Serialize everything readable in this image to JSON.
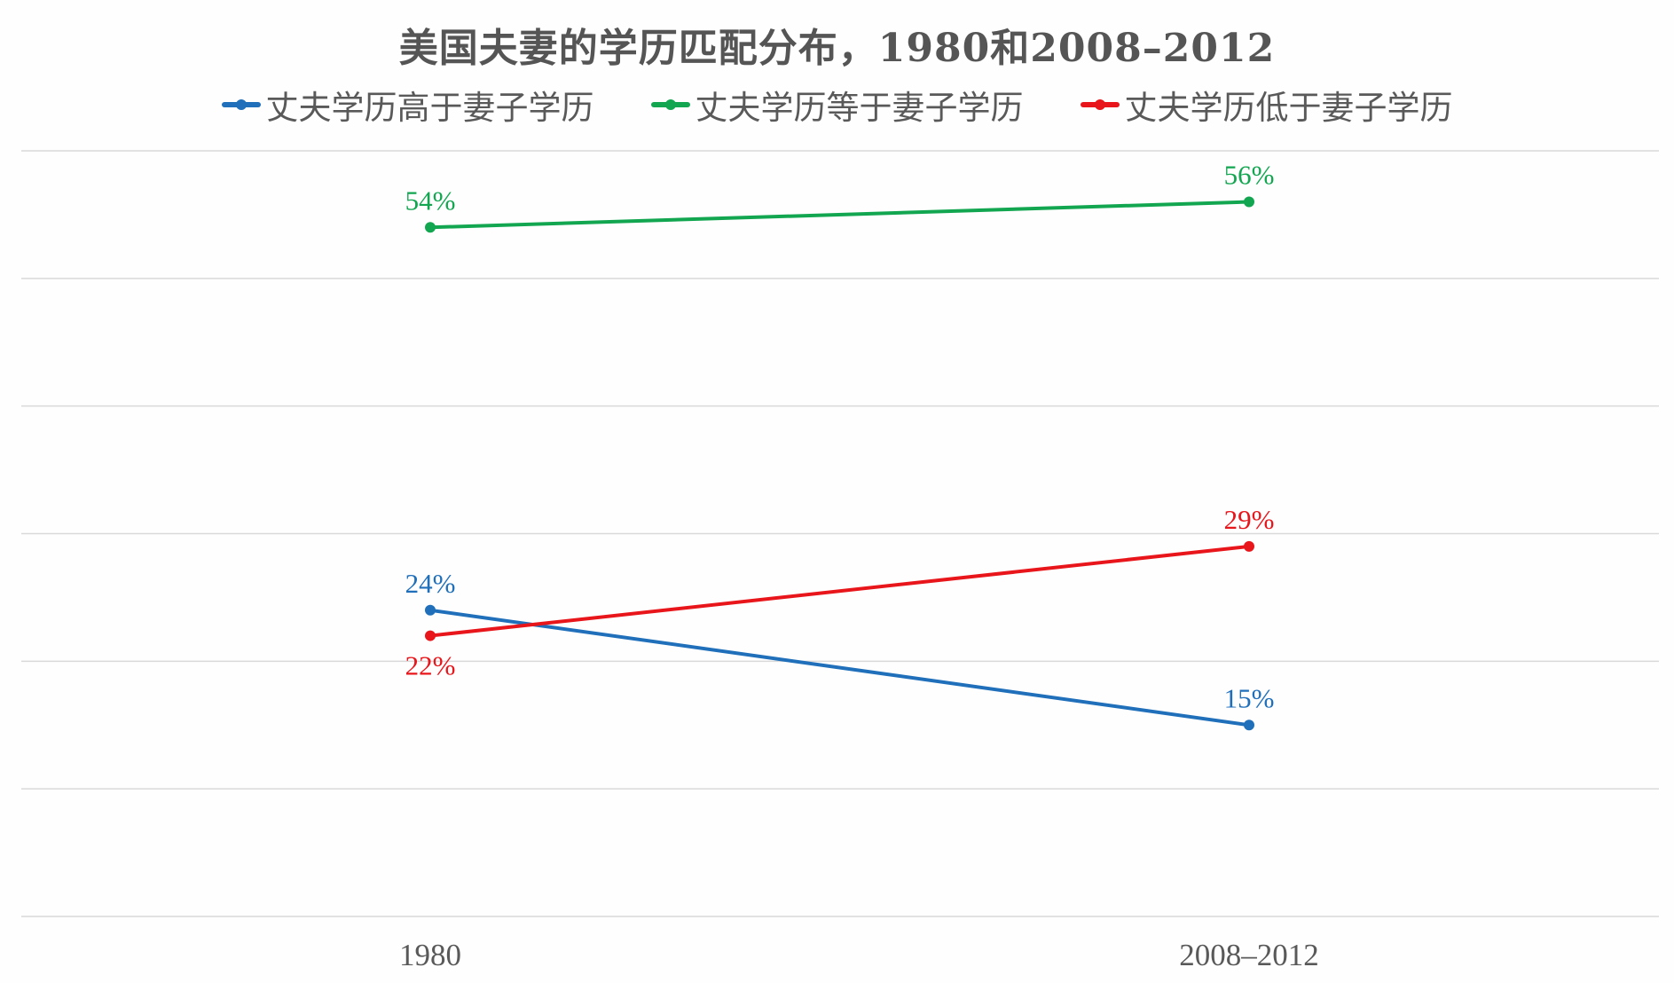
{
  "chart_data": {
    "type": "line",
    "title": "美国夫妻的学历匹配分布，1980和2008–2012",
    "categories": [
      "1980",
      "2008–2012"
    ],
    "series": [
      {
        "name": "丈夫学历高于妻子学历",
        "color": "#1f6fba",
        "values": [
          24,
          15
        ],
        "labels": [
          "24%",
          "15%"
        ]
      },
      {
        "name": "丈夫学历等于妻子学历",
        "color": "#12a650",
        "values": [
          54,
          56
        ],
        "labels": [
          "54%",
          "56%"
        ]
      },
      {
        "name": "丈夫学历低于妻子学历",
        "color": "#e8161b",
        "values": [
          22,
          29
        ],
        "labels": [
          "22%",
          "29%"
        ]
      }
    ],
    "ylim": [
      0,
      60
    ],
    "grid": true,
    "legend_position": "top"
  }
}
